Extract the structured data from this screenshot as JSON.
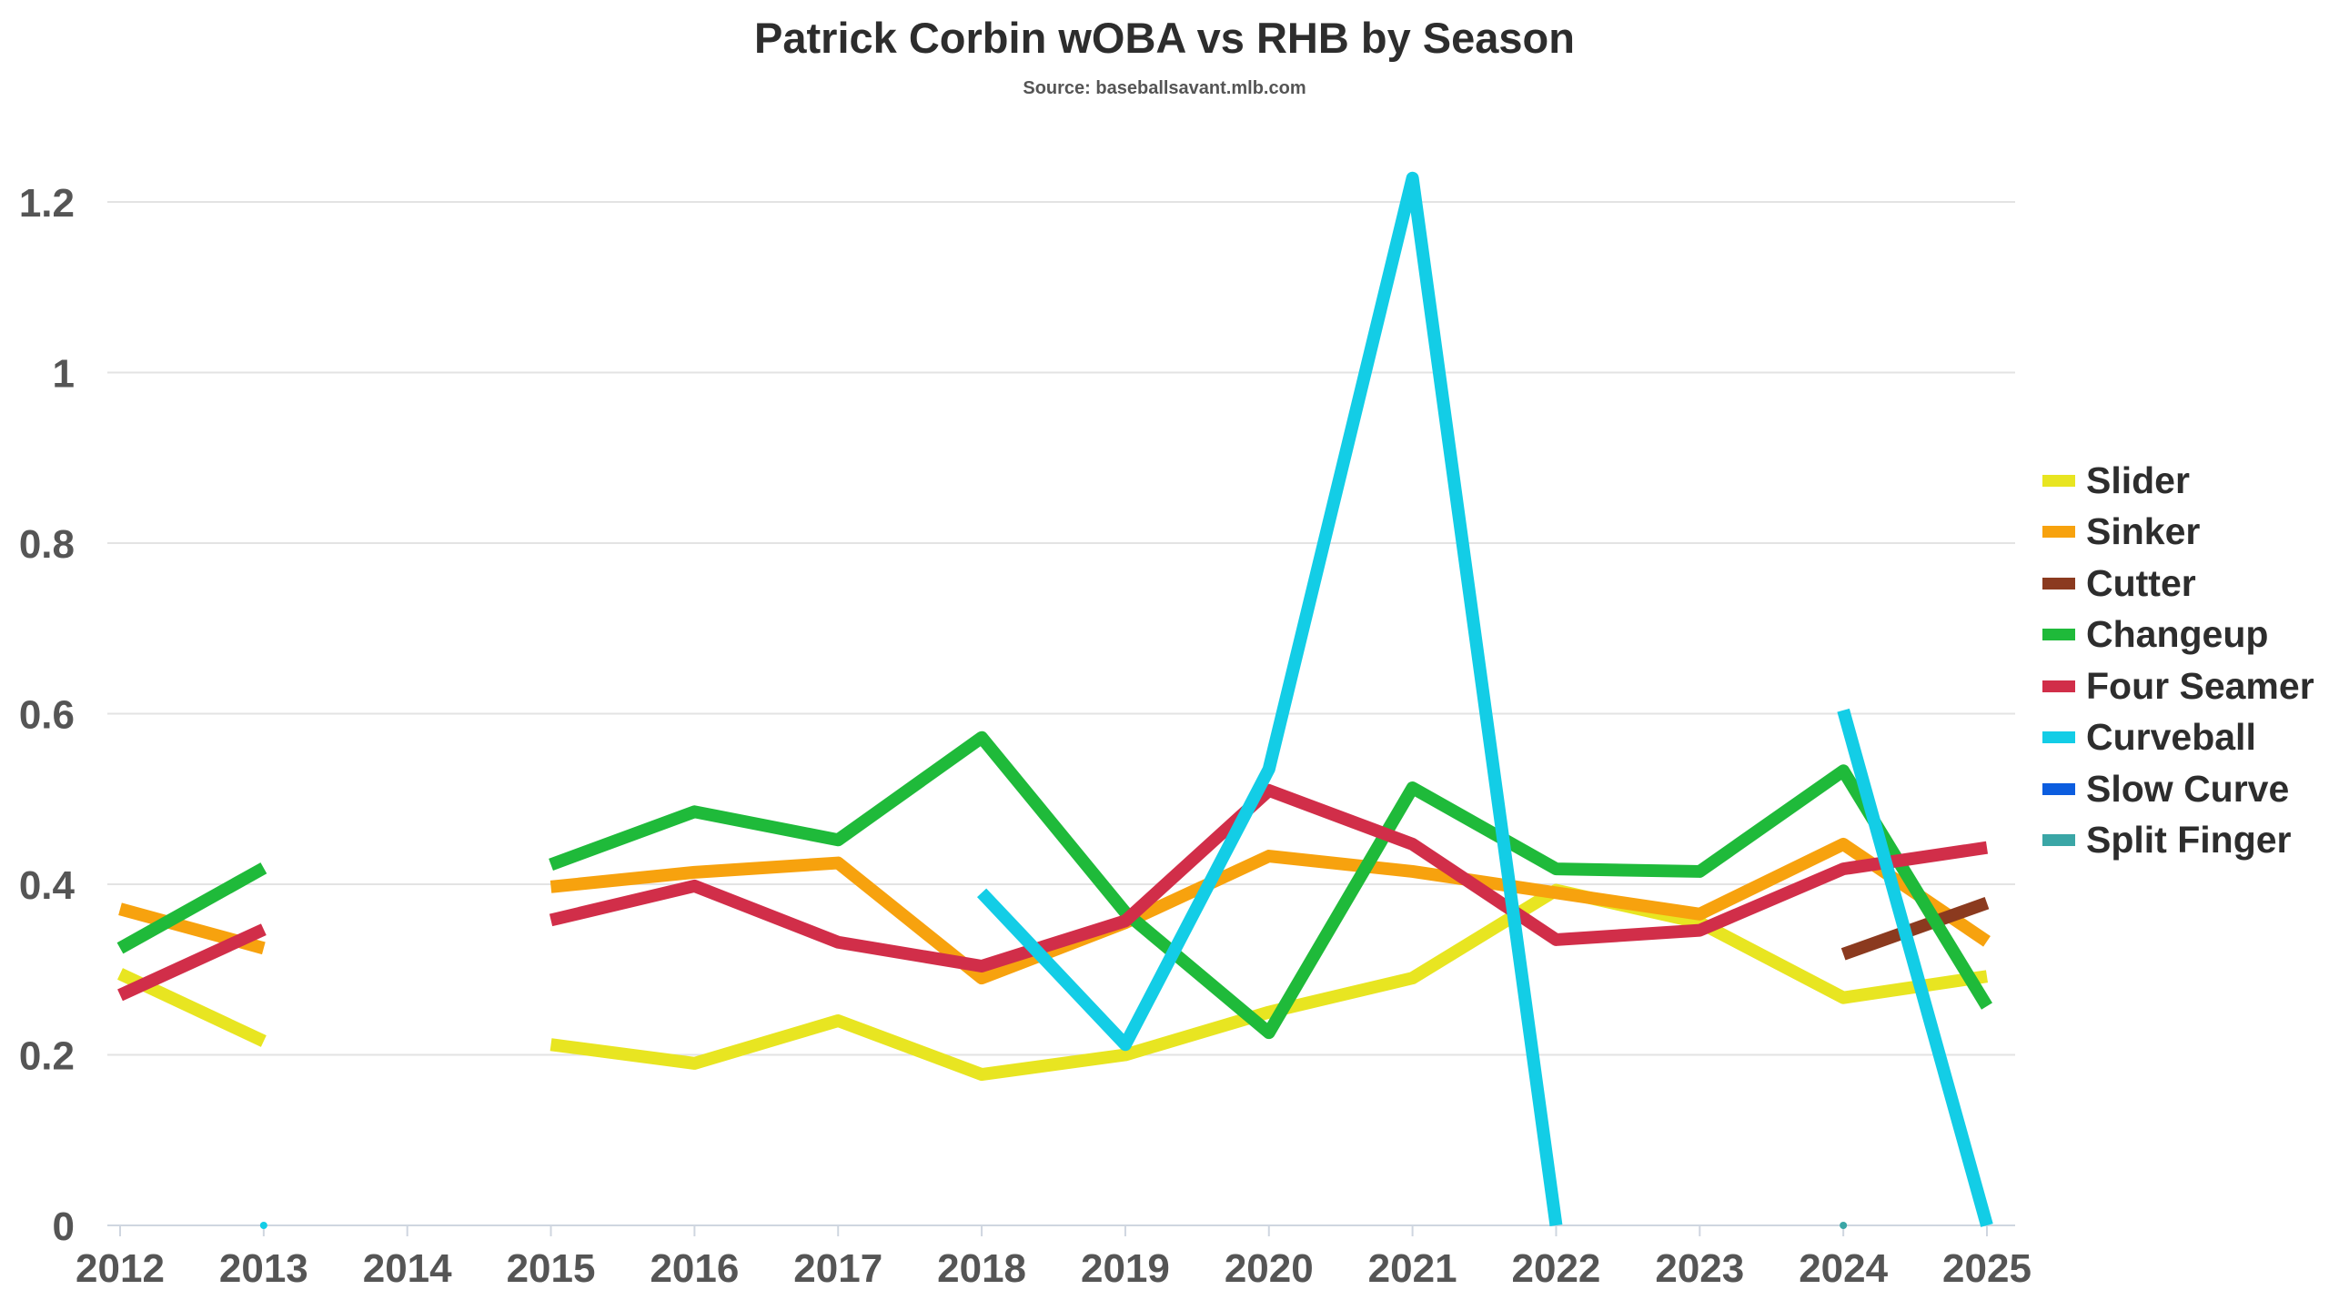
{
  "chart_data": {
    "type": "line",
    "title": "Patrick Corbin wOBA vs RHB by Season",
    "subtitle": "Source: baseballsavant.mlb.com",
    "xlabel": "",
    "ylabel": "",
    "x": [
      "2012",
      "2013",
      "2014",
      "2015",
      "2016",
      "2017",
      "2018",
      "2019",
      "2020",
      "2021",
      "2022",
      "2023",
      "2024",
      "2025"
    ],
    "ylim": [
      0,
      1.3
    ],
    "yticks": [
      {
        "value": 0,
        "label": "0"
      },
      {
        "value": 0.2,
        "label": "0.2"
      },
      {
        "value": 0.4,
        "label": "0.4"
      },
      {
        "value": 0.6,
        "label": "0.6"
      },
      {
        "value": 0.8,
        "label": "0.8"
      },
      {
        "value": 1,
        "label": "1"
      },
      {
        "value": 1.2,
        "label": "1.2"
      }
    ],
    "grid": "horizontal",
    "legend_position": "right",
    "series": [
      {
        "name": "Slider",
        "color": "#e8e521",
        "values": [
          0.295,
          0.216,
          null,
          0.212,
          0.19,
          0.24,
          0.177,
          0.2,
          0.25,
          0.29,
          0.393,
          0.355,
          0.267,
          0.292
        ]
      },
      {
        "name": "Sinker",
        "color": "#f7a20e",
        "values": [
          0.371,
          0.325,
          null,
          0.397,
          0.414,
          0.425,
          0.29,
          0.355,
          0.433,
          0.415,
          0.39,
          0.365,
          0.447,
          0.333
        ]
      },
      {
        "name": "Cutter",
        "color": "#8b3a1f",
        "values": [
          null,
          null,
          null,
          null,
          null,
          null,
          null,
          null,
          null,
          null,
          null,
          null,
          0.318,
          0.378
        ]
      },
      {
        "name": "Changeup",
        "color": "#1fba3a",
        "values": [
          0.325,
          0.419,
          null,
          0.423,
          0.485,
          0.452,
          0.572,
          0.367,
          0.226,
          0.513,
          0.418,
          0.415,
          0.533,
          0.257
        ]
      },
      {
        "name": "Four Seamer",
        "color": "#d12e49",
        "values": [
          0.27,
          0.347,
          null,
          0.358,
          0.398,
          0.332,
          0.304,
          0.357,
          0.51,
          0.447,
          0.335,
          0.346,
          0.418,
          0.443
        ]
      },
      {
        "name": "Curveball",
        "color": "#13cde6",
        "values": [
          null,
          0.0,
          null,
          null,
          null,
          null,
          0.39,
          0.212,
          0.535,
          1.228,
          0.0,
          null,
          0.604,
          0.0
        ]
      },
      {
        "name": "Slow Curve",
        "color": "#0c5ddf",
        "values": [
          null,
          null,
          null,
          null,
          null,
          null,
          null,
          null,
          null,
          null,
          null,
          null,
          null,
          null
        ]
      },
      {
        "name": "Split Finger",
        "color": "#3aa6a6",
        "values": [
          null,
          null,
          null,
          null,
          null,
          null,
          null,
          null,
          null,
          null,
          null,
          null,
          0.0,
          null
        ]
      }
    ]
  }
}
